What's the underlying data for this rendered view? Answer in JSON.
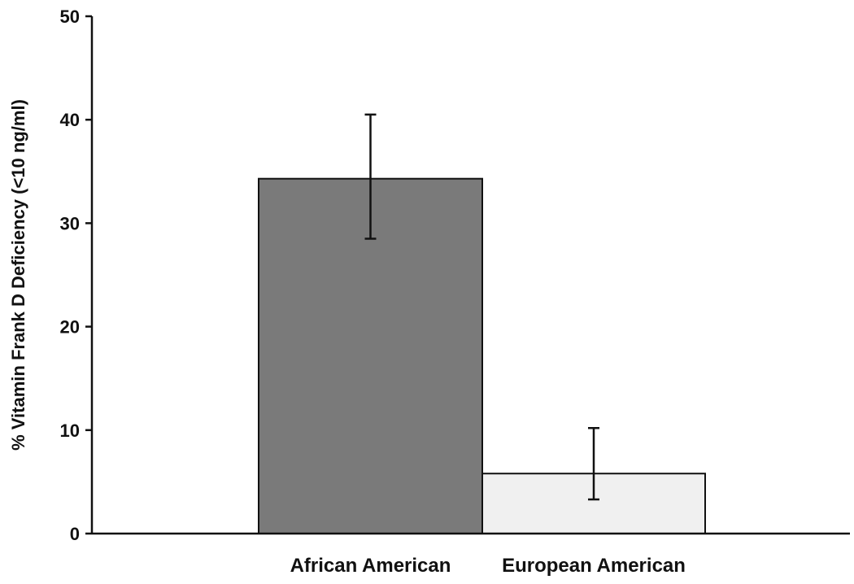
{
  "chart_data": {
    "type": "bar",
    "categories": [
      "African American",
      "European American"
    ],
    "values": [
      34.3,
      5.8
    ],
    "error_bars": [
      {
        "low": 28.5,
        "high": 40.5
      },
      {
        "low": 3.3,
        "high": 10.2
      }
    ],
    "bar_colors": [
      "#7a7a7a",
      "#f0f0f0"
    ],
    "ylabel": "% Vitamin Frank D Deficiency (<10 ng/ml)",
    "xlabel": "",
    "ylim": [
      0,
      50
    ],
    "yticks": [
      0,
      10,
      20,
      30,
      40,
      50
    ],
    "ytick_labels": [
      "0",
      "10",
      "20",
      "30",
      "40",
      "50"
    ],
    "grid": false,
    "legend": false
  }
}
